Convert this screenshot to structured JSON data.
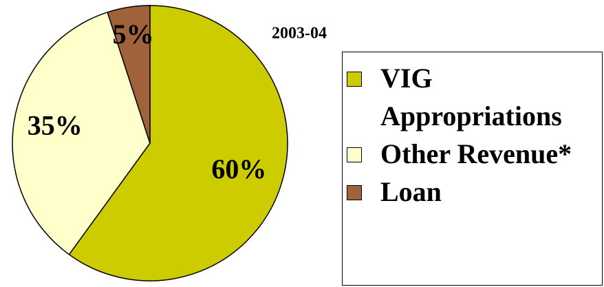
{
  "chart_data": {
    "type": "pie",
    "title": "2003-04",
    "categories": [
      "VIG Appropriations",
      "Other Revenue*",
      "Loan"
    ],
    "values": [
      60,
      35,
      5
    ],
    "value_labels": [
      "60%",
      "35%",
      "5%"
    ],
    "colors": [
      "#cccc00",
      "#ffffcc",
      "#a0623a"
    ],
    "legend": "right"
  }
}
